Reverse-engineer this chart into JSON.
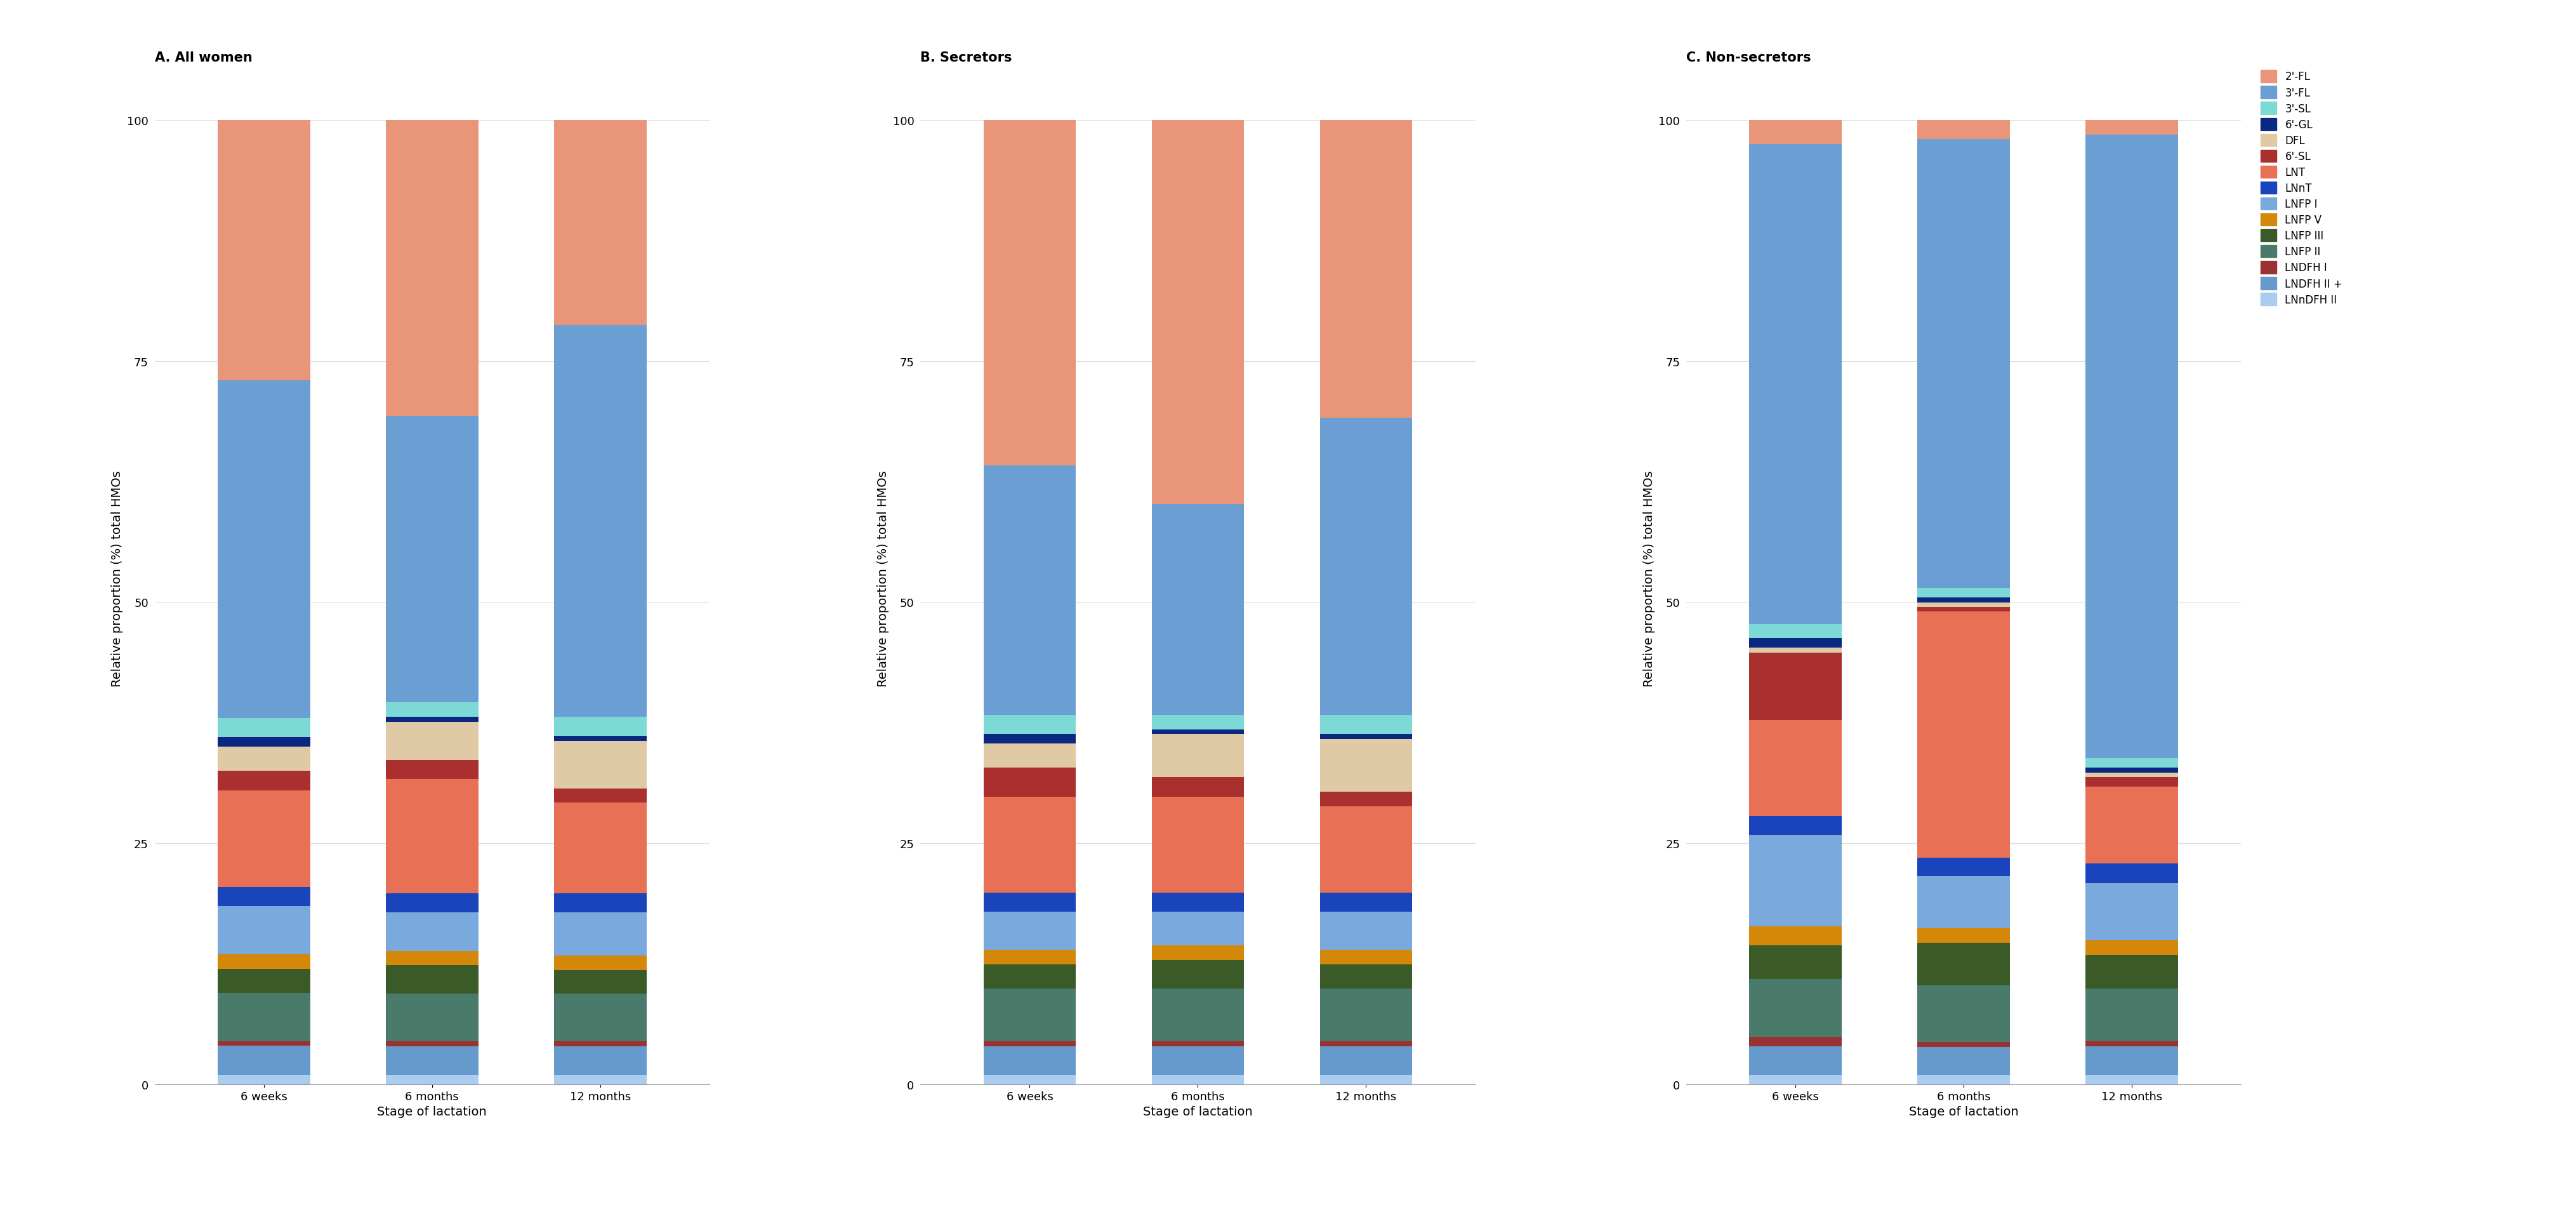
{
  "panels": [
    {
      "title": "A. All women",
      "xlabel": "Stage of lactation",
      "ylabel": "Relative proportion (%) total HMOs",
      "xticks": [
        "6 weeks",
        "6 months",
        "12 months"
      ],
      "data": {
        "LNnDFH II": [
          1.0,
          1.0,
          1.0
        ],
        "LNDFH II +": [
          3.0,
          3.0,
          3.0
        ],
        "LNDFH I": [
          0.5,
          0.5,
          0.5
        ],
        "LNFP II": [
          5.0,
          5.0,
          5.0
        ],
        "LNFP III": [
          2.5,
          3.0,
          2.5
        ],
        "LNFP V": [
          1.5,
          1.5,
          1.5
        ],
        "LNFP I": [
          5.0,
          4.0,
          4.5
        ],
        "LNnT": [
          2.0,
          2.0,
          2.0
        ],
        "LNT": [
          10.0,
          12.0,
          9.5
        ],
        "6'-SL": [
          2.0,
          2.0,
          1.5
        ],
        "DFL": [
          2.5,
          4.0,
          5.0
        ],
        "6'-GL": [
          1.0,
          0.5,
          0.5
        ],
        "3'-SL": [
          2.0,
          1.5,
          2.0
        ],
        "3'-FL": [
          35.0,
          30.0,
          41.0
        ],
        "2'-FL": [
          27.0,
          31.0,
          21.5
        ]
      }
    },
    {
      "title": "B. Secretors",
      "xlabel": "Stage of lactation",
      "ylabel": "Relative proportion (%) total HMOs",
      "xticks": [
        "6 weeks",
        "6 months",
        "12 months"
      ],
      "data": {
        "LNnDFH II": [
          1.0,
          1.0,
          1.0
        ],
        "LNDFH II +": [
          3.0,
          3.0,
          3.0
        ],
        "LNDFH I": [
          0.5,
          0.5,
          0.5
        ],
        "LNFP II": [
          5.5,
          5.5,
          5.5
        ],
        "LNFP III": [
          2.5,
          3.0,
          2.5
        ],
        "LNFP V": [
          1.5,
          1.5,
          1.5
        ],
        "LNFP I": [
          4.0,
          3.5,
          4.0
        ],
        "LNnT": [
          2.0,
          2.0,
          2.0
        ],
        "LNT": [
          10.0,
          10.0,
          9.0
        ],
        "6'-SL": [
          3.0,
          2.0,
          1.5
        ],
        "DFL": [
          2.5,
          4.5,
          5.5
        ],
        "6'-GL": [
          1.0,
          0.5,
          0.5
        ],
        "3'-SL": [
          2.0,
          1.5,
          2.0
        ],
        "3'-FL": [
          26.0,
          22.0,
          31.0
        ],
        "2'-FL": [
          36.0,
          40.0,
          31.0
        ]
      }
    },
    {
      "title": "C. Non-secretors",
      "xlabel": "Stage of lactation",
      "ylabel": "Relative proportion (%) total HMOs",
      "xticks": [
        "6 weeks",
        "6 months",
        "12 months"
      ],
      "data": {
        "LNnDFH II": [
          1.0,
          1.0,
          1.0
        ],
        "LNDFH II +": [
          3.0,
          3.0,
          3.0
        ],
        "LNDFH I": [
          1.0,
          0.5,
          0.5
        ],
        "LNFP II": [
          6.0,
          6.0,
          5.5
        ],
        "LNFP III": [
          3.5,
          4.5,
          3.5
        ],
        "LNFP V": [
          2.0,
          1.5,
          1.5
        ],
        "LNFP I": [
          9.5,
          5.5,
          6.0
        ],
        "LNnT": [
          2.0,
          2.0,
          2.0
        ],
        "LNT": [
          10.0,
          26.0,
          8.0
        ],
        "6'-SL": [
          7.0,
          0.5,
          1.0
        ],
        "DFL": [
          0.5,
          0.5,
          0.5
        ],
        "6'-GL": [
          1.0,
          0.5,
          0.5
        ],
        "3'-SL": [
          1.5,
          1.0,
          1.0
        ],
        "3'-FL": [
          50.0,
          47.5,
          65.0
        ],
        "2'-FL": [
          2.5,
          2.0,
          1.5
        ]
      }
    }
  ],
  "hmo_order": [
    "LNnDFH II",
    "LNDFH II +",
    "LNDFH I",
    "LNFP II",
    "LNFP III",
    "LNFP V",
    "LNFP I",
    "LNnT",
    "LNT",
    "6'-SL",
    "DFL",
    "6'-GL",
    "3'-SL",
    "3'-FL",
    "2'-FL"
  ],
  "colors": {
    "2'-FL": "#E8957A",
    "3'-FL": "#6B9FD4",
    "3'-SL": "#7DD9D5",
    "6'-GL": "#0A2882",
    "DFL": "#E0C9A5",
    "6'-SL": "#AA3030",
    "LNT": "#E87055",
    "LNnT": "#1A44BB",
    "LNFP I": "#7AAADD",
    "LNFP V": "#D4880A",
    "LNFP III": "#3A5A28",
    "LNFP II": "#4A7A6A",
    "LNDFH I": "#993333",
    "LNDFH II +": "#6699CC",
    "LNnDFH II": "#AACCEE"
  },
  "legend_order": [
    "2'-FL",
    "3'-FL",
    "3'-SL",
    "6'-GL",
    "DFL",
    "6'-SL",
    "LNT",
    "LNnT",
    "LNFP I",
    "LNFP V",
    "LNFP III",
    "LNFP II",
    "LNDFH I",
    "LNDFH II +",
    "LNnDFH II"
  ],
  "background_color": "#FFFFFF",
  "ylabel_fontsize": 14,
  "xlabel_fontsize": 14,
  "title_fontsize": 15,
  "tick_fontsize": 13,
  "legend_fontsize": 12,
  "bar_width": 0.55,
  "ylim": [
    0,
    105
  ]
}
